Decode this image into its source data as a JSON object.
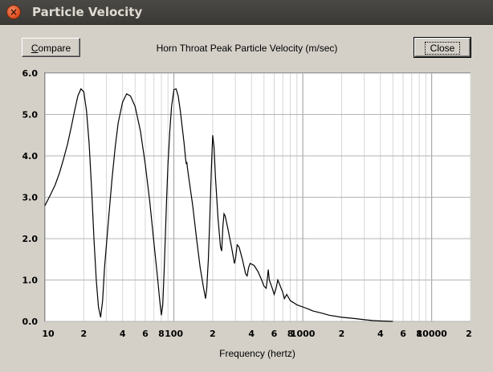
{
  "window": {
    "title": "Particle Velocity"
  },
  "toolbar": {
    "compare_label_pre": "",
    "compare_label_accel": "C",
    "compare_label_post": "ompare",
    "close_label": "Close"
  },
  "chart_data": {
    "type": "line",
    "title": "Horn Throat Peak Particle Velocity (m/sec)",
    "xlabel": "Frequency (hertz)",
    "ylabel": "",
    "xscale": "log",
    "xlim": [
      10,
      20000
    ],
    "ylim": [
      0,
      6
    ],
    "grid": true,
    "yticks": [
      "6.0",
      "5.0",
      "4.0",
      "3.0",
      "2.0",
      "1.0",
      "0.0"
    ],
    "xticks": [
      {
        "v": 10,
        "label": "10"
      },
      {
        "v": 20,
        "label": "2"
      },
      {
        "v": 40,
        "label": "4"
      },
      {
        "v": 60,
        "label": "6"
      },
      {
        "v": 80,
        "label": "8"
      },
      {
        "v": 100,
        "label": "100"
      },
      {
        "v": 200,
        "label": "2"
      },
      {
        "v": 400,
        "label": "4"
      },
      {
        "v": 600,
        "label": "6"
      },
      {
        "v": 800,
        "label": "8"
      },
      {
        "v": 1000,
        "label": "1000"
      },
      {
        "v": 2000,
        "label": "2"
      },
      {
        "v": 4000,
        "label": "4"
      },
      {
        "v": 6000,
        "label": "6"
      },
      {
        "v": 8000,
        "label": "8"
      },
      {
        "v": 10000,
        "label": "10000"
      },
      {
        "v": 20000,
        "label": "2"
      }
    ],
    "series": [
      {
        "name": "",
        "points": [
          [
            10,
            2.8
          ],
          [
            11,
            3.05
          ],
          [
            12,
            3.3
          ],
          [
            13,
            3.6
          ],
          [
            14,
            3.95
          ],
          [
            15,
            4.3
          ],
          [
            16,
            4.7
          ],
          [
            17,
            5.1
          ],
          [
            18,
            5.45
          ],
          [
            19,
            5.62
          ],
          [
            20,
            5.55
          ],
          [
            21,
            5.1
          ],
          [
            22,
            4.3
          ],
          [
            23,
            3.2
          ],
          [
            24,
            2.0
          ],
          [
            25,
            1.0
          ],
          [
            26,
            0.35
          ],
          [
            27,
            0.1
          ],
          [
            28,
            0.5
          ],
          [
            29,
            1.3
          ],
          [
            31,
            2.4
          ],
          [
            33,
            3.4
          ],
          [
            35,
            4.2
          ],
          [
            37,
            4.8
          ],
          [
            40,
            5.3
          ],
          [
            43,
            5.5
          ],
          [
            46,
            5.45
          ],
          [
            50,
            5.2
          ],
          [
            55,
            4.6
          ],
          [
            60,
            3.8
          ],
          [
            65,
            2.9
          ],
          [
            70,
            1.9
          ],
          [
            75,
            1.0
          ],
          [
            78,
            0.45
          ],
          [
            80,
            0.15
          ],
          [
            82,
            0.4
          ],
          [
            84,
            1.2
          ],
          [
            86,
            2.1
          ],
          [
            88,
            3.0
          ],
          [
            90,
            3.8
          ],
          [
            93,
            4.6
          ],
          [
            96,
            5.2
          ],
          [
            100,
            5.6
          ],
          [
            104,
            5.62
          ],
          [
            108,
            5.45
          ],
          [
            112,
            5.1
          ],
          [
            116,
            4.7
          ],
          [
            120,
            4.3
          ],
          [
            123,
            3.95
          ],
          [
            125,
            3.8
          ],
          [
            126,
            3.85
          ],
          [
            127,
            3.75
          ],
          [
            130,
            3.5
          ],
          [
            140,
            2.8
          ],
          [
            150,
            2.0
          ],
          [
            160,
            1.3
          ],
          [
            170,
            0.8
          ],
          [
            176,
            0.55
          ],
          [
            180,
            0.8
          ],
          [
            185,
            1.5
          ],
          [
            190,
            2.5
          ],
          [
            195,
            3.6
          ],
          [
            200,
            4.5
          ],
          [
            205,
            4.2
          ],
          [
            210,
            3.5
          ],
          [
            220,
            2.5
          ],
          [
            230,
            1.8
          ],
          [
            235,
            1.7
          ],
          [
            240,
            2.3
          ],
          [
            245,
            2.6
          ],
          [
            250,
            2.55
          ],
          [
            260,
            2.3
          ],
          [
            280,
            1.8
          ],
          [
            295,
            1.4
          ],
          [
            300,
            1.5
          ],
          [
            310,
            1.85
          ],
          [
            320,
            1.8
          ],
          [
            340,
            1.5
          ],
          [
            360,
            1.15
          ],
          [
            370,
            1.1
          ],
          [
            380,
            1.3
          ],
          [
            390,
            1.4
          ],
          [
            420,
            1.35
          ],
          [
            450,
            1.2
          ],
          [
            480,
            1.0
          ],
          [
            500,
            0.85
          ],
          [
            520,
            0.8
          ],
          [
            530,
            1.0
          ],
          [
            540,
            1.25
          ],
          [
            550,
            1.0
          ],
          [
            580,
            0.8
          ],
          [
            600,
            0.65
          ],
          [
            620,
            0.8
          ],
          [
            640,
            1.0
          ],
          [
            660,
            0.9
          ],
          [
            700,
            0.7
          ],
          [
            720,
            0.55
          ],
          [
            750,
            0.65
          ],
          [
            800,
            0.5
          ],
          [
            850,
            0.45
          ],
          [
            900,
            0.4
          ],
          [
            1000,
            0.35
          ],
          [
            1100,
            0.3
          ],
          [
            1200,
            0.25
          ],
          [
            1400,
            0.2
          ],
          [
            1600,
            0.15
          ],
          [
            2000,
            0.1
          ],
          [
            2500,
            0.07
          ],
          [
            3000,
            0.04
          ],
          [
            3500,
            0.02
          ],
          [
            4000,
            0.01
          ],
          [
            5000,
            0.0
          ]
        ]
      }
    ]
  }
}
